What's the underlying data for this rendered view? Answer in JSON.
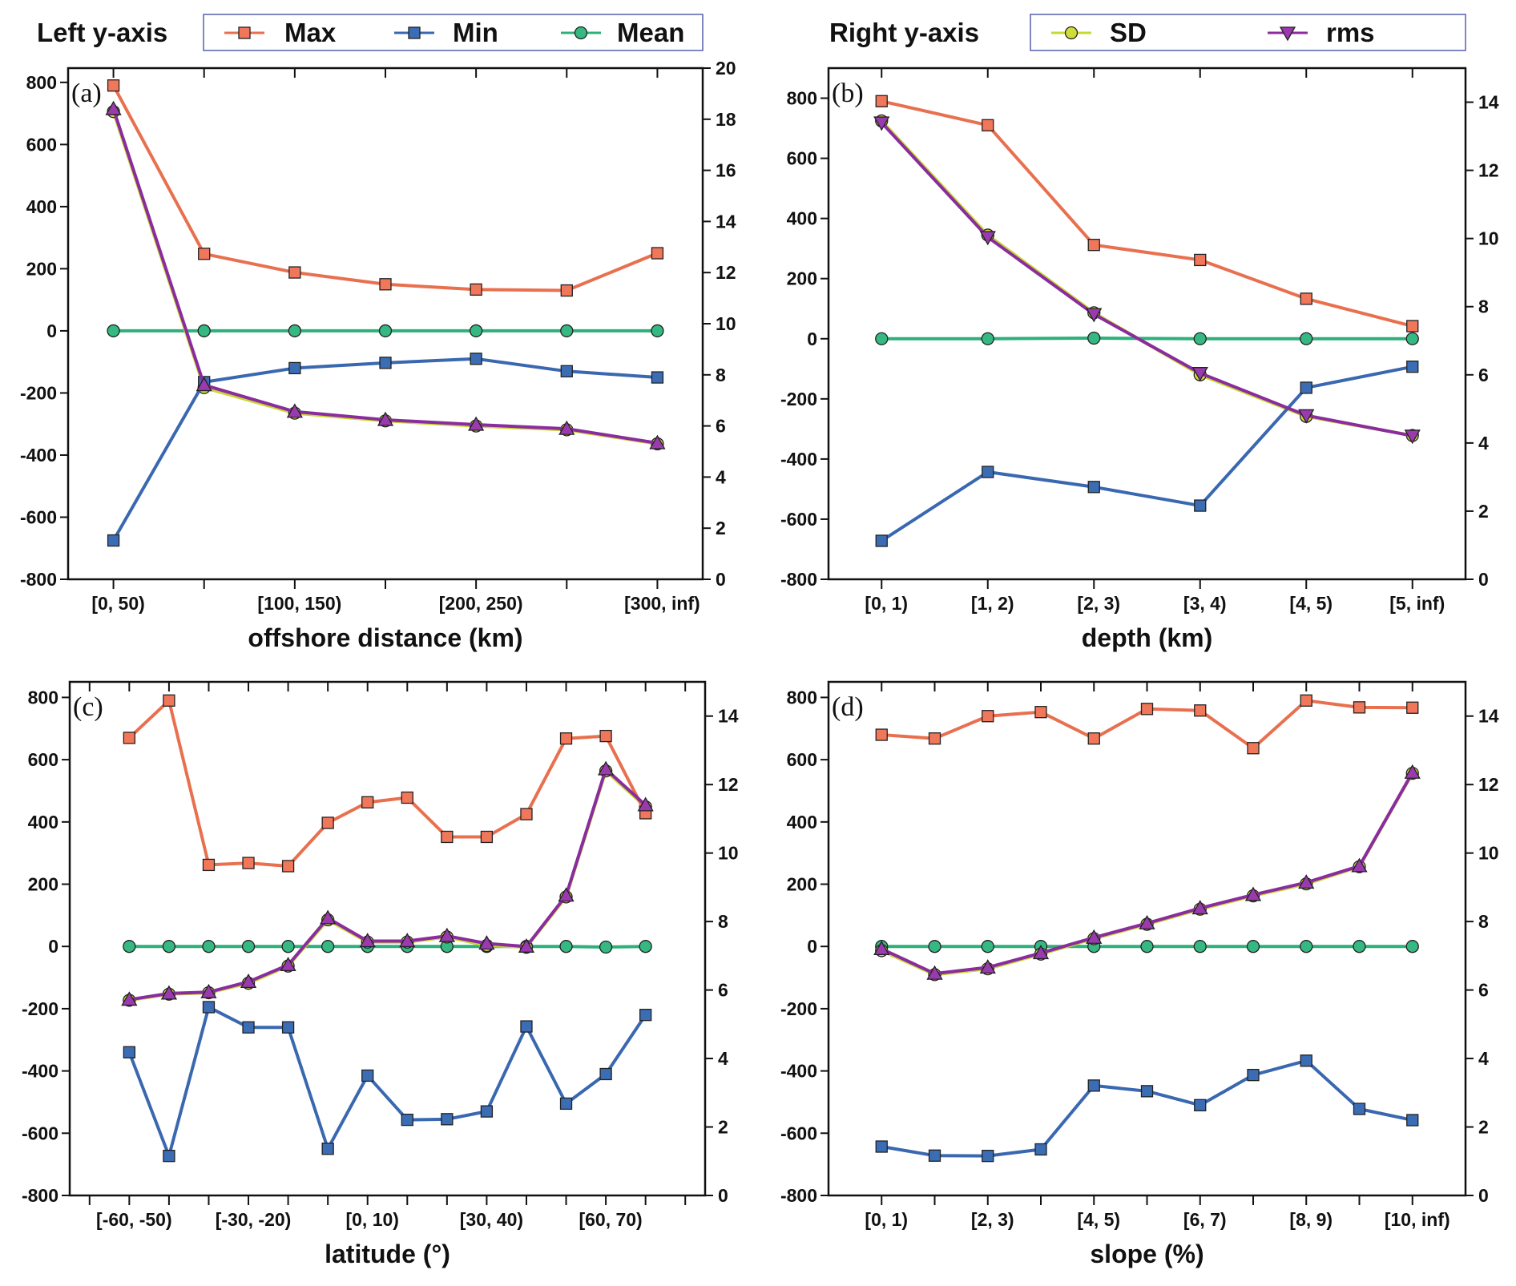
{
  "legends": [
    {
      "title": "Left y-axis",
      "entries": [
        {
          "name": "Max",
          "color": "#E8704F",
          "marker": "square"
        },
        {
          "name": "Min",
          "color": "#3A68B0",
          "marker": "square"
        },
        {
          "name": "Mean",
          "color": "#2EB07A",
          "marker": "circle"
        }
      ]
    },
    {
      "title": "Right y-axis",
      "entries": [
        {
          "name": "SD",
          "color": "#C8D830",
          "marker": "circle"
        },
        {
          "name": "rms",
          "color": "#8A2C9E",
          "marker": "triangle-down"
        }
      ]
    }
  ],
  "chart_data": [
    {
      "type": "line",
      "panel": "(a)",
      "xlabel": "offshore distance (km)",
      "tick_labels": [
        "[0, 50)",
        "",
        "[100, 150)",
        "",
        "[200, 250)",
        "",
        "[300, inf)"
      ],
      "xlim": [
        -0.5,
        6.5
      ],
      "ylim_left": [
        -800,
        846
      ],
      "ylim_right": [
        0,
        20
      ],
      "right_ticks": [
        0,
        2,
        4,
        6,
        8,
        10,
        12,
        14,
        16,
        18,
        20
      ],
      "rms_marker": "triangle-up",
      "series": [
        {
          "name": "Max",
          "axis": "left",
          "values": [
            790,
            248,
            188,
            150,
            133,
            130,
            250
          ]
        },
        {
          "name": "Min",
          "axis": "left",
          "values": [
            -675,
            -165,
            -120,
            -103,
            -90,
            -130,
            -150
          ]
        },
        {
          "name": "Mean",
          "axis": "left",
          "values": [
            0,
            0,
            0,
            0,
            0,
            0,
            0
          ]
        },
        {
          "name": "SD",
          "axis": "right",
          "values": [
            18.3,
            7.5,
            6.5,
            6.2,
            6.0,
            5.85,
            5.3
          ]
        },
        {
          "name": "rms",
          "axis": "right",
          "values": [
            18.4,
            7.6,
            6.56,
            6.24,
            6.05,
            5.89,
            5.33
          ]
        }
      ]
    },
    {
      "type": "line",
      "panel": "(b)",
      "xlabel": "depth (km)",
      "tick_labels": [
        "[0, 1)",
        "[1, 2)",
        "[2, 3)",
        "[3, 4)",
        "[4, 5)",
        "[5, inf)"
      ],
      "xlim": [
        -0.5,
        5.5
      ],
      "ylim_left": [
        -800,
        900
      ],
      "ylim_right": [
        0,
        15
      ],
      "right_ticks": [
        0,
        2,
        4,
        6,
        8,
        10,
        12,
        14
      ],
      "rms_marker": "triangle-down",
      "series": [
        {
          "name": "Max",
          "axis": "left",
          "values": [
            790,
            710,
            312,
            262,
            133,
            42
          ]
        },
        {
          "name": "Min",
          "axis": "left",
          "values": [
            -672,
            -443,
            -493,
            -555,
            -163,
            -93
          ]
        },
        {
          "name": "Mean",
          "axis": "left",
          "values": [
            0,
            0,
            2,
            0,
            0,
            0
          ]
        },
        {
          "name": "SD",
          "axis": "right",
          "values": [
            13.45,
            10.1,
            7.82,
            6.0,
            4.78,
            4.22
          ]
        },
        {
          "name": "rms",
          "axis": "right",
          "values": [
            13.4,
            10.04,
            7.78,
            6.05,
            4.81,
            4.21
          ]
        }
      ]
    },
    {
      "type": "line",
      "panel": "(c)",
      "xlabel": "latitude (°)",
      "tick_labels": [
        "",
        "[-60, -50)",
        "",
        "",
        "[-30, -20)",
        "",
        "",
        "[0, 10)",
        "",
        "",
        "[30, 40)",
        "",
        "",
        "[60, 70)",
        "",
        ""
      ],
      "xlim": [
        -0.5,
        15.5
      ],
      "ylim_left": [
        -800,
        850
      ],
      "ylim_right": [
        0,
        15
      ],
      "right_ticks": [
        0,
        2,
        4,
        6,
        8,
        10,
        12,
        14
      ],
      "rms_marker": "triangle-up",
      "series": [
        {
          "name": "Max",
          "axis": "left",
          "values": [
            null,
            670,
            790,
            262,
            268,
            258,
            397,
            463,
            478,
            352,
            352,
            425,
            668,
            676,
            428,
            null
          ]
        },
        {
          "name": "Min",
          "axis": "left",
          "values": [
            null,
            -340,
            -673,
            -195,
            -260,
            -260,
            -650,
            -415,
            -557,
            -555,
            -530,
            -257,
            -505,
            -410,
            -220,
            null
          ]
        },
        {
          "name": "Mean",
          "axis": "left",
          "values": [
            null,
            0,
            0,
            0,
            0,
            0,
            0,
            0,
            0,
            0,
            0,
            0,
            0,
            -2,
            0,
            null
          ]
        },
        {
          "name": "SD",
          "axis": "right",
          "values": [
            null,
            5.7,
            5.88,
            5.92,
            6.2,
            6.7,
            8.05,
            7.4,
            7.4,
            7.55,
            7.3,
            7.25,
            8.72,
            12.4,
            11.35,
            null
          ]
        },
        {
          "name": "rms",
          "axis": "right",
          "values": [
            null,
            5.72,
            5.9,
            5.94,
            6.24,
            6.73,
            8.1,
            7.43,
            7.43,
            7.58,
            7.36,
            7.27,
            8.76,
            12.45,
            11.4,
            null
          ]
        }
      ]
    },
    {
      "type": "line",
      "panel": "(d)",
      "xlabel": "slope (%)",
      "tick_labels": [
        "[0, 1)",
        "",
        "[2, 3)",
        "",
        "[4, 5)",
        "",
        "[6, 7)",
        "",
        "[8, 9)",
        "",
        "[10, inf)"
      ],
      "xlim": [
        -1,
        11
      ],
      "ylim_left": [
        -800,
        850
      ],
      "ylim_right": [
        0,
        15
      ],
      "right_ticks": [
        0,
        2,
        4,
        6,
        8,
        10,
        12,
        14
      ],
      "rms_marker": "triangle-up",
      "series": [
        {
          "name": "Max",
          "axis": "left",
          "values": [
            680,
            668,
            740,
            753,
            668,
            763,
            758,
            637,
            790,
            768,
            767
          ]
        },
        {
          "name": "Min",
          "axis": "left",
          "values": [
            -643,
            -672,
            -673,
            -652,
            -447,
            -465,
            -510,
            -413,
            -367,
            -522,
            -558
          ]
        },
        {
          "name": "Mean",
          "axis": "left",
          "values": [
            0,
            0,
            0,
            0,
            0,
            0,
            0,
            0,
            0,
            0,
            0
          ]
        },
        {
          "name": "SD",
          "axis": "right",
          "values": [
            7.15,
            6.45,
            6.62,
            7.05,
            7.5,
            7.92,
            8.36,
            8.75,
            9.1,
            9.6,
            12.33
          ]
        },
        {
          "name": "rms",
          "axis": "right",
          "values": [
            7.2,
            6.48,
            6.66,
            7.08,
            7.53,
            7.95,
            8.39,
            8.78,
            9.14,
            9.62,
            12.35
          ]
        }
      ]
    }
  ]
}
